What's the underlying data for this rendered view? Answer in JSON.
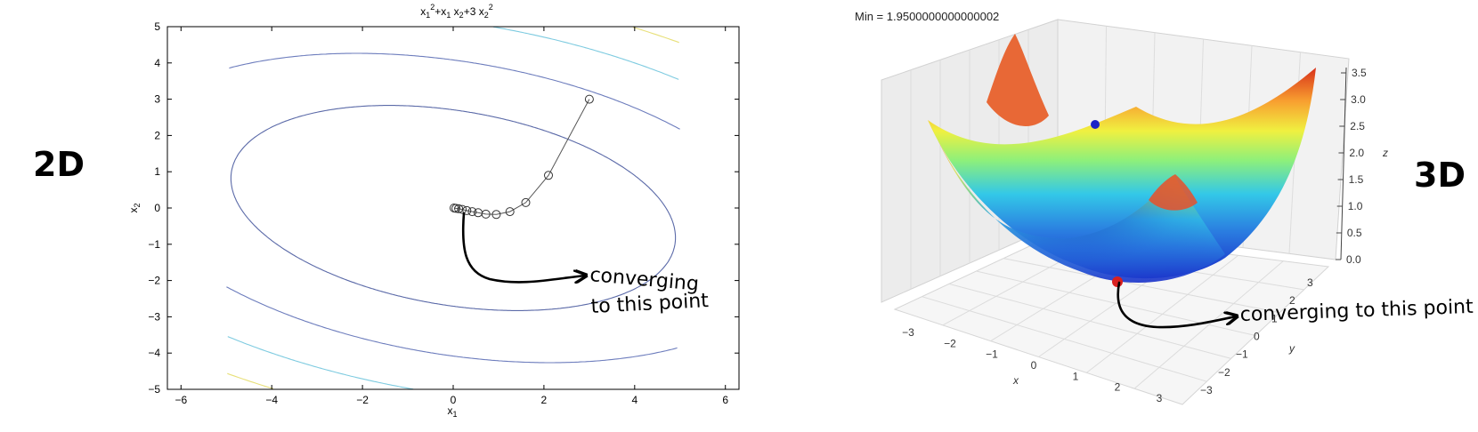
{
  "side_labels": {
    "left": "2D",
    "right": "3D"
  },
  "chart_data": [
    {
      "type": "contour",
      "title": "x₁²+x₁x₂+3x₂²",
      "title_parts": {
        "v1": "x",
        "s1": "1",
        "p1": "2",
        "mid": "+x",
        "s2": "1",
        "v2": " x",
        "s3": "2",
        "mid2": "+3 x",
        "s4": "2",
        "p2": "2"
      },
      "xlabel": {
        "base": "x",
        "sub": "1"
      },
      "ylabel": {
        "base": "x",
        "sub": "2"
      },
      "xlim": [
        -6.3,
        6.3
      ],
      "ylim": [
        -5,
        5
      ],
      "xticks": [
        -6,
        -4,
        -2,
        0,
        2,
        4,
        6
      ],
      "yticks": [
        -5,
        -4,
        -3,
        -2,
        -1,
        0,
        1,
        2,
        3,
        4,
        5
      ],
      "xtick_labels": [
        "−6",
        "−4",
        "−2",
        "0",
        "2",
        "4",
        "6"
      ],
      "ytick_labels": [
        "−5",
        "−4",
        "−3",
        "−2",
        "−1",
        "0",
        "1",
        "2",
        "3",
        "4",
        "5"
      ],
      "contour_levels": [
        {
          "level": 22,
          "color": "#5b6aa8"
        },
        {
          "level": 50,
          "color": "#6d7dbd"
        },
        {
          "level": 80,
          "color": "#7ecbe0"
        },
        {
          "level": 110,
          "color": "#e8e07a"
        },
        {
          "level": 140,
          "color": "#c08a5a"
        }
      ],
      "path": [
        [
          3.0,
          3.0
        ],
        [
          2.1,
          0.9
        ],
        [
          1.6,
          0.15
        ],
        [
          1.25,
          -0.1
        ],
        [
          0.95,
          -0.18
        ],
        [
          0.72,
          -0.17
        ],
        [
          0.55,
          -0.13
        ],
        [
          0.42,
          -0.1
        ],
        [
          0.3,
          -0.07
        ],
        [
          0.2,
          -0.04
        ],
        [
          0.12,
          -0.02
        ],
        [
          0.06,
          -0.01
        ],
        [
          0.02,
          0.0
        ]
      ],
      "annotation": {
        "line1": "converging",
        "line2": "to this point"
      }
    },
    {
      "type": "surface3d",
      "title": "Min = 1.9500000000000002",
      "xlabel": "x",
      "ylabel": "y",
      "zlabel": "z",
      "xlim": [
        -3,
        3
      ],
      "ylim": [
        -3,
        3
      ],
      "zlim": [
        0,
        3.5
      ],
      "xtick_labels": [
        "−3",
        "−2",
        "−1",
        "0",
        "1",
        "2",
        "3"
      ],
      "ytick_labels": [
        "−3",
        "−2",
        "−1",
        "0",
        "1",
        "2",
        "3"
      ],
      "ztick_labels": [
        "0.0",
        "0.5",
        "1.0",
        "1.5",
        "2.0",
        "2.5",
        "3.0",
        "3.5"
      ],
      "annotation": "converging to this point"
    }
  ]
}
